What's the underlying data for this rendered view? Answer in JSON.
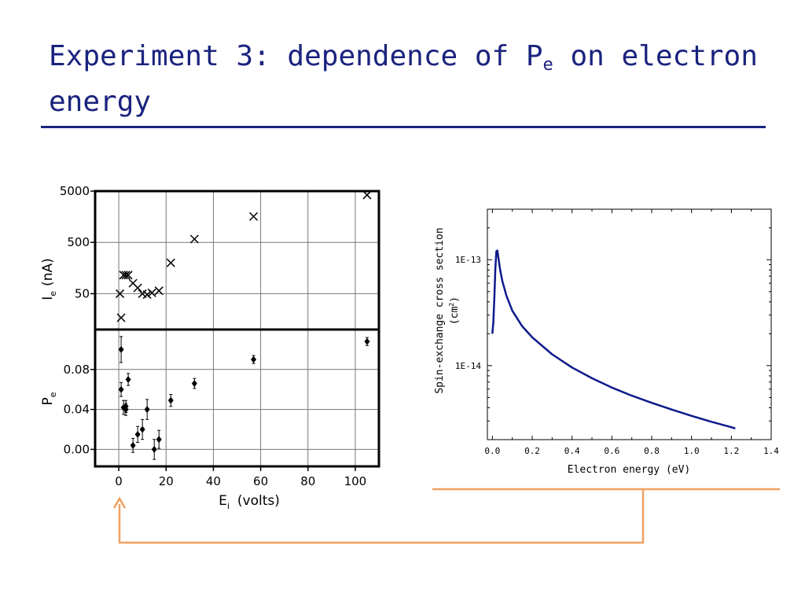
{
  "slide": {
    "title_main": "Experiment 3: dependence of P",
    "title_sub": "e",
    "title_tail": " on electron energy"
  },
  "colors": {
    "title": "#1a237e",
    "right_curve": "#0d1a8c",
    "arrow": "#f0a060"
  },
  "chart_data": [
    {
      "type": "scatter",
      "panel": "top",
      "ylabel_main": "I",
      "ylabel_sub": "e",
      "ylabel_tail": "(nA)",
      "yscale": "log",
      "ylim": [
        10,
        5000
      ],
      "yticks": [
        {
          "v": 5000,
          "label": "5000"
        },
        {
          "v": 500,
          "label": "500"
        },
        {
          "v": 50,
          "label": "50"
        }
      ],
      "xlim": [
        -10,
        110
      ],
      "marker": "x",
      "points": [
        [
          0.5,
          50
        ],
        [
          1,
          17
        ],
        [
          2,
          115
        ],
        [
          3,
          115
        ],
        [
          4,
          115
        ],
        [
          6,
          80
        ],
        [
          8,
          65
        ],
        [
          10,
          50
        ],
        [
          12,
          48
        ],
        [
          14,
          52
        ],
        [
          17,
          57
        ],
        [
          22,
          200
        ],
        [
          32,
          580
        ],
        [
          57,
          1600
        ],
        [
          105,
          4200
        ]
      ]
    },
    {
      "type": "scatter",
      "panel": "bottom",
      "ylabel_main": "P",
      "ylabel_sub": "e",
      "ylim": [
        -0.017,
        0.12
      ],
      "yticks": [
        {
          "v": 0.08,
          "label": "0.08"
        },
        {
          "v": 0.04,
          "label": "0.04"
        },
        {
          "v": 0.0,
          "label": "0.00"
        }
      ],
      "xlabel_main": "E",
      "xlabel_sub": "i",
      "xlabel_tail": "(volts)",
      "xlim": [
        -10,
        110
      ],
      "xticks": [
        {
          "v": 0,
          "label": "0"
        },
        {
          "v": 20,
          "label": "20"
        },
        {
          "v": 40,
          "label": "40"
        },
        {
          "v": 60,
          "label": "60"
        },
        {
          "v": 80,
          "label": "80"
        },
        {
          "v": 100,
          "label": "100"
        }
      ],
      "marker": "diamond",
      "points": [
        {
          "x": 1,
          "y": 0.1,
          "err": 0.013
        },
        {
          "x": 1,
          "y": 0.06,
          "err": 0.007
        },
        {
          "x": 2,
          "y": 0.042,
          "err": 0.007
        },
        {
          "x": 3,
          "y": 0.043,
          "err": 0.006
        },
        {
          "x": 3,
          "y": 0.04,
          "err": 0.006
        },
        {
          "x": 4,
          "y": 0.07,
          "err": 0.006
        },
        {
          "x": 6,
          "y": 0.004,
          "err": 0.007
        },
        {
          "x": 8,
          "y": 0.015,
          "err": 0.008
        },
        {
          "x": 10,
          "y": 0.02,
          "err": 0.01
        },
        {
          "x": 12,
          "y": 0.04,
          "err": 0.01
        },
        {
          "x": 15,
          "y": 0.0,
          "err": 0.01
        },
        {
          "x": 17,
          "y": 0.01,
          "err": 0.009
        },
        {
          "x": 22,
          "y": 0.049,
          "err": 0.006
        },
        {
          "x": 32,
          "y": 0.066,
          "err": 0.005
        },
        {
          "x": 57,
          "y": 0.09,
          "err": 0.004
        },
        {
          "x": 105,
          "y": 0.108,
          "err": 0.004
        }
      ]
    },
    {
      "type": "line",
      "panel": "right",
      "xlabel": "Electron energy (eV)",
      "ylabel_line1": "Spin-exchange cross section",
      "ylabel_line2_main": "(cm",
      "ylabel_line2_sup": "2",
      "ylabel_line2_tail": ")",
      "xlim": [
        -0.025,
        1.4
      ],
      "xticks": [
        {
          "v": 0.0,
          "label": "0.0"
        },
        {
          "v": 0.2,
          "label": "0.2"
        },
        {
          "v": 0.4,
          "label": "0.4"
        },
        {
          "v": 0.6,
          "label": "0.6"
        },
        {
          "v": 0.8,
          "label": "0.8"
        },
        {
          "v": 1.0,
          "label": "1.0"
        },
        {
          "v": 1.2,
          "label": "1.2"
        },
        {
          "v": 1.4,
          "label": "1.4"
        }
      ],
      "yscale": "log",
      "ylim": [
        2e-15,
        3e-13
      ],
      "yticks": [
        {
          "v": 1e-13,
          "label": "1E-13"
        },
        {
          "v": 1e-14,
          "label": "1E-14"
        }
      ],
      "series": [
        {
          "x": [
            0.0,
            0.005,
            0.01,
            0.015,
            0.02,
            0.025,
            0.03,
            0.04,
            0.05,
            0.07,
            0.1,
            0.15,
            0.2,
            0.3,
            0.4,
            0.5,
            0.6,
            0.7,
            0.8,
            0.9,
            1.0,
            1.1,
            1.2,
            1.22
          ],
          "y": [
            2e-14,
            2.6e-14,
            4.5e-14,
            8.2e-14,
            1.2e-13,
            1.22e-13,
            1.05e-13,
            7.8e-14,
            6.3e-14,
            4.6e-14,
            3.3e-14,
            2.35e-14,
            1.85e-14,
            1.28e-14,
            9.6e-15,
            7.6e-15,
            6.2e-15,
            5.2e-15,
            4.45e-15,
            3.85e-15,
            3.35e-15,
            2.95e-15,
            2.62e-15,
            2.55e-15
          ]
        }
      ]
    }
  ]
}
